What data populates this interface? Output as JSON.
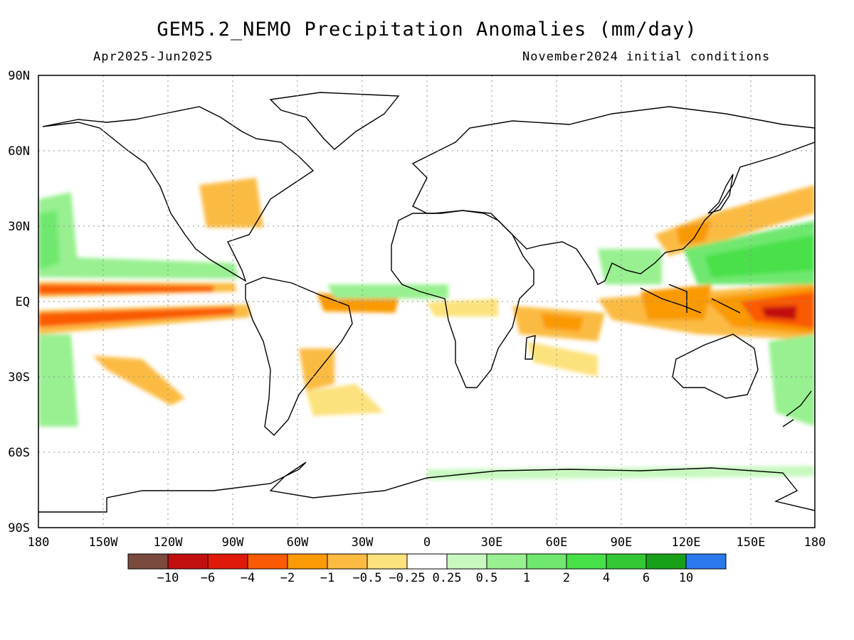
{
  "map": {
    "title": "GEM5.2_NEMO Precipitation Anomalies (mm/day)",
    "period": "Apr2025-Jun2025",
    "init": "November2024 initial conditions",
    "lat_labels": [
      "90N",
      "60N",
      "30N",
      "EQ",
      "30S",
      "60S",
      "90S"
    ],
    "lon_labels": [
      "180",
      "150W",
      "120W",
      "90W",
      "60W",
      "30W",
      "0",
      "30E",
      "60E",
      "90E",
      "120E",
      "150E",
      "180"
    ],
    "colorbar": {
      "colors": [
        "#7a4a3f",
        "#c1100f",
        "#e01a0a",
        "#fa5a04",
        "#fa9a04",
        "#fbbb42",
        "#fce27c",
        "#ffffff",
        "#c8f8c0",
        "#98f090",
        "#70e870",
        "#48e048",
        "#34c834",
        "#18a018",
        "#2a78ec"
      ],
      "labels": [
        "-10",
        "-6",
        "-4",
        "-2",
        "-1",
        "-0.5",
        "-0.25",
        "0.25",
        "0.5",
        "1",
        "2",
        "4",
        "6",
        "10"
      ]
    }
  }
}
